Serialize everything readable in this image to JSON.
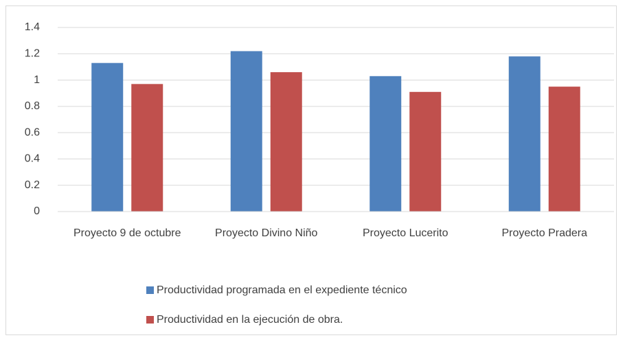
{
  "chart_data": {
    "type": "bar",
    "categories": [
      "Proyecto 9 de octubre",
      "Proyecto Divino Niño",
      "Proyecto Lucerito",
      "Proyecto Pradera"
    ],
    "series": [
      {
        "name": "Productividad programada en el expediente técnico",
        "color": "#4f81bd",
        "values": [
          1.13,
          1.22,
          1.03,
          1.18
        ]
      },
      {
        "name": "Productividad en la ejecución de obra.",
        "color": "#c0504d",
        "values": [
          0.97,
          1.06,
          0.91,
          0.95
        ]
      }
    ],
    "ylim": [
      0,
      1.4
    ],
    "yticks": [
      0,
      0.2,
      0.4,
      0.6,
      0.8,
      1,
      1.2,
      1.4
    ],
    "grid": true,
    "legend": "bottom"
  }
}
